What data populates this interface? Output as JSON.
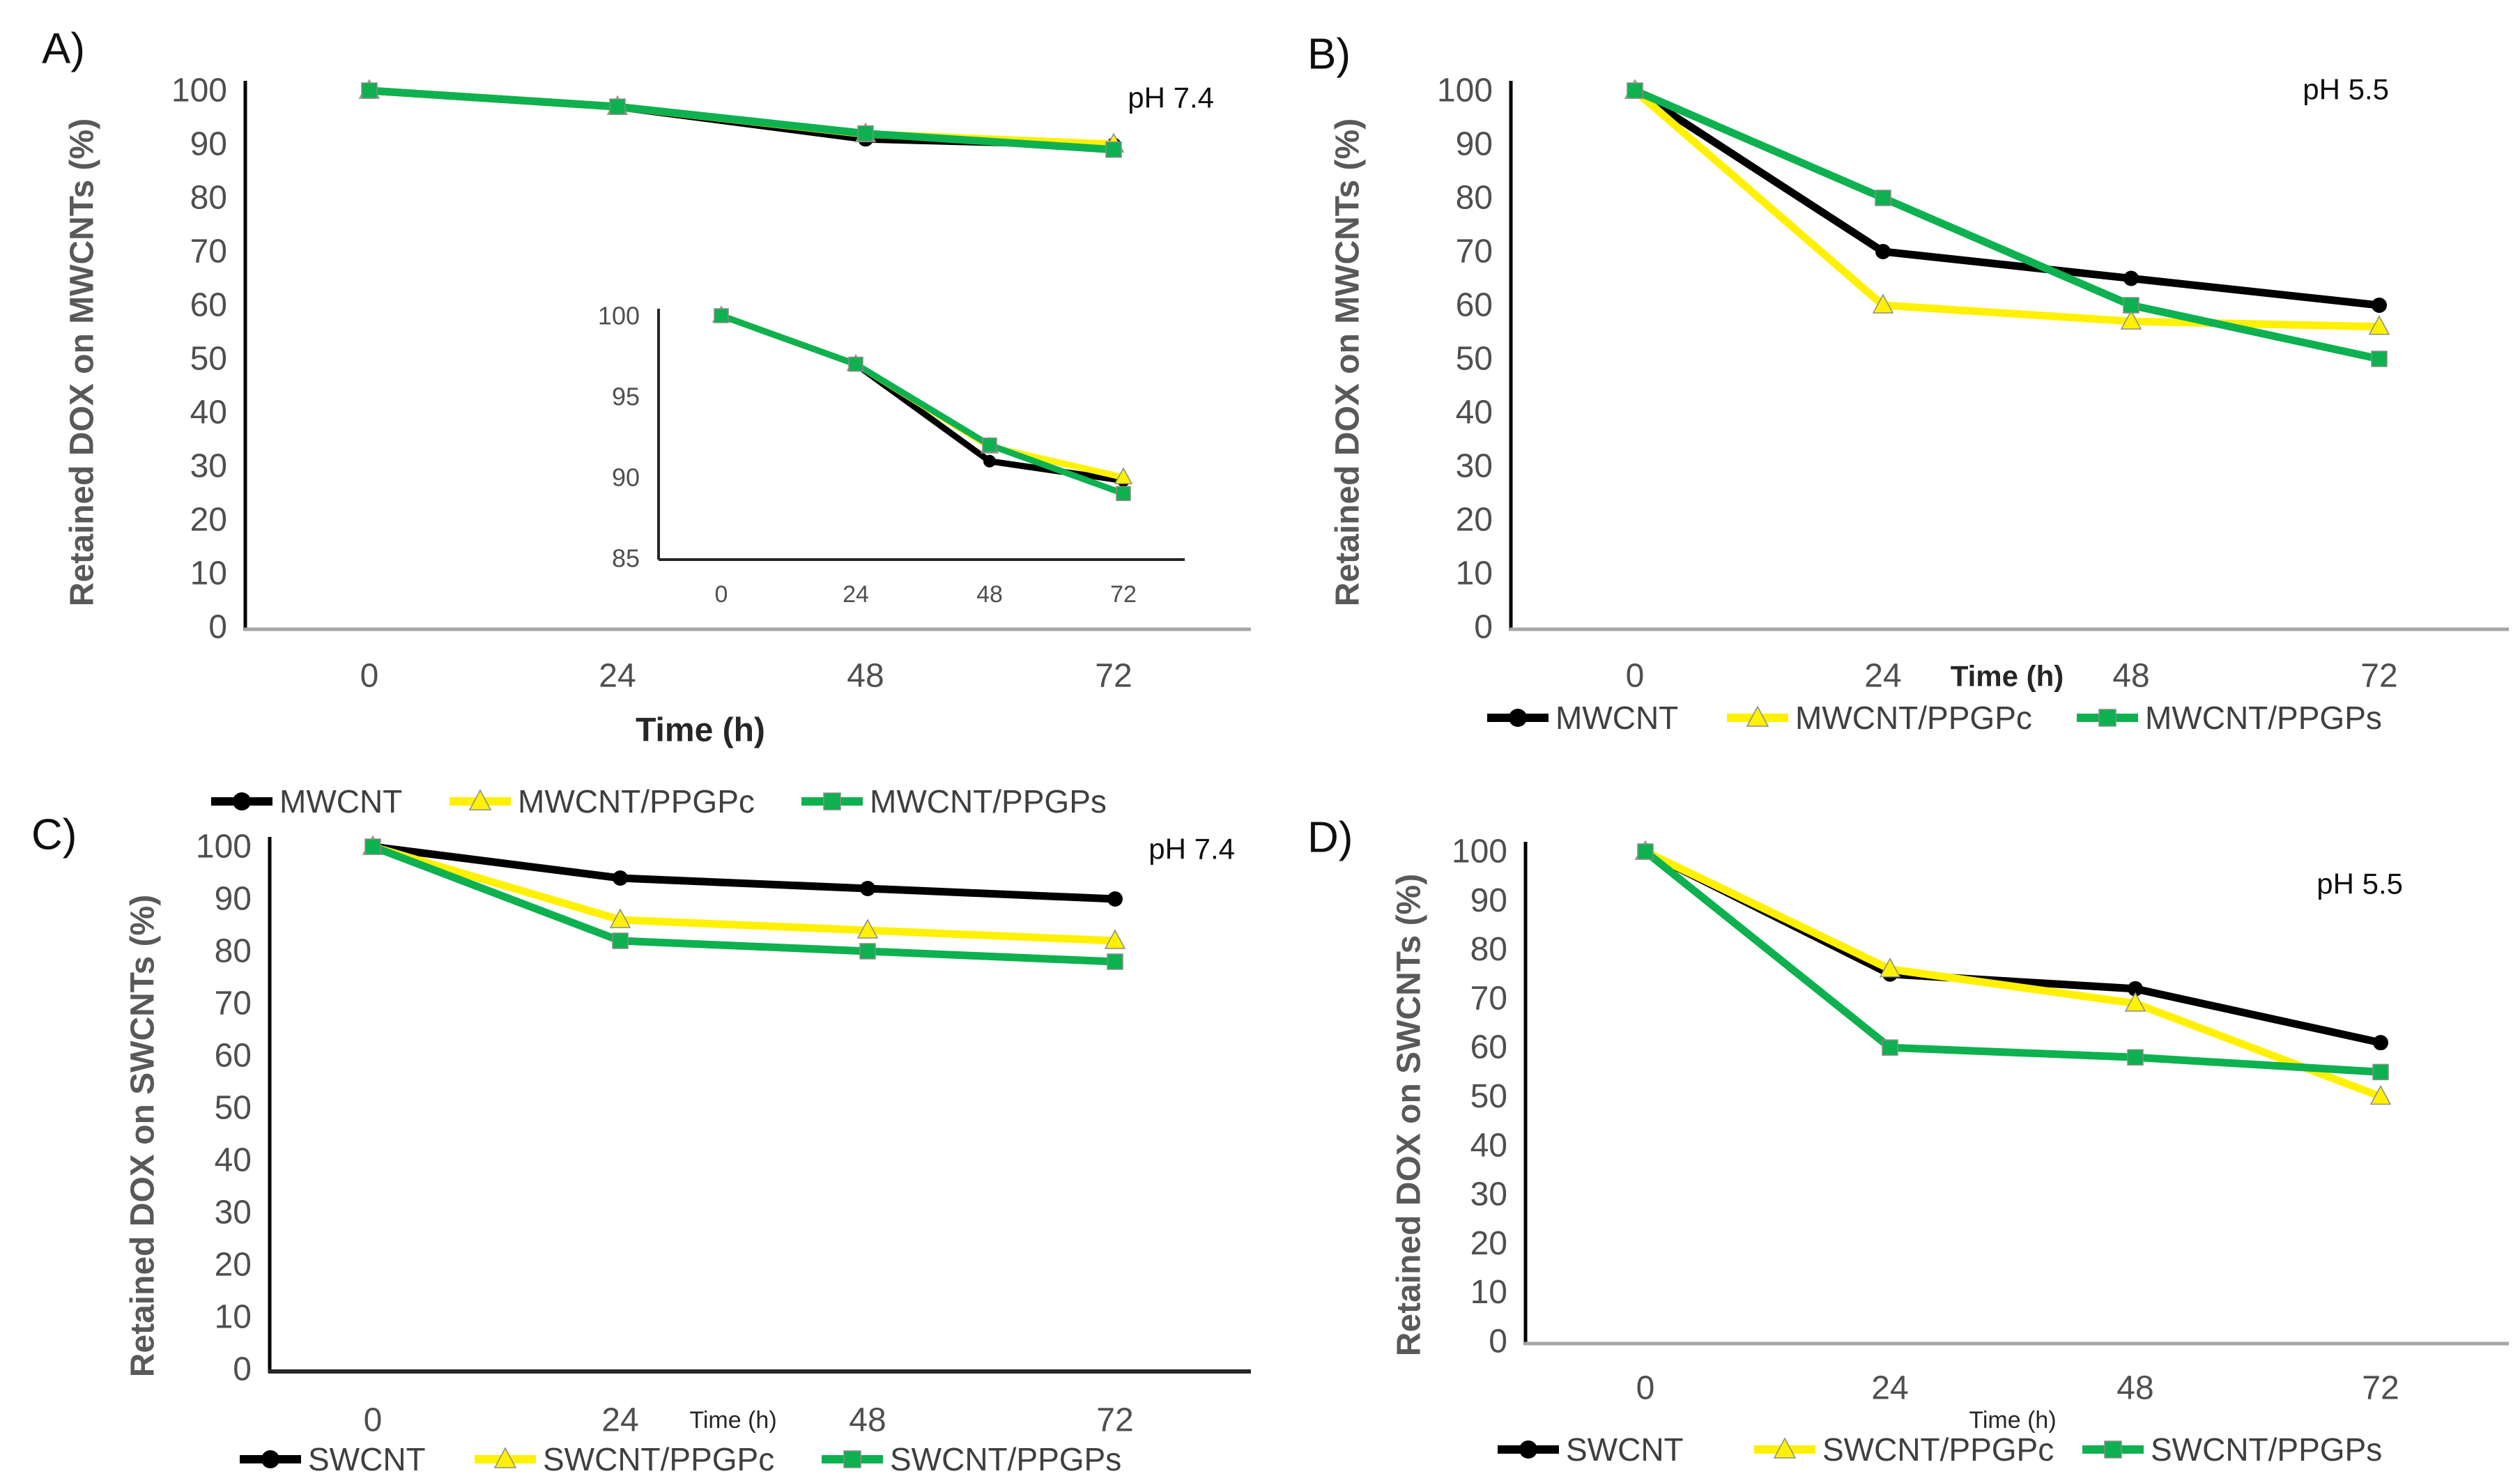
{
  "colors": {
    "black_series": "#000000",
    "yellow_series": "#FFF100",
    "green_series": "#0DB14F",
    "axis_line": "#000000",
    "baseline_gray": "#a6a6a6",
    "baseline_dark": "#262626",
    "tick_text": "#4f4f4f",
    "axis_title_text": "#595959",
    "legend_text": "#3f3f3f",
    "label_text": "#0f0f0f"
  },
  "chart_data": [
    {
      "id": "A",
      "type": "line",
      "panel_label": "A)",
      "annotation": "pH 7.4",
      "xlabel": "Time (h)",
      "ylabel": "Retained DOX on MWCNTs (%)",
      "x_categories": [
        "0",
        "24",
        "48",
        "72"
      ],
      "x_values": [
        0,
        24,
        48,
        72
      ],
      "ylim": [
        0,
        100
      ],
      "yticks": [
        0,
        10,
        20,
        30,
        40,
        50,
        60,
        70,
        80,
        90,
        100
      ],
      "grid": false,
      "legend_position": "bottom",
      "series": [
        {
          "name": "MWCNT",
          "color_key": "black_series",
          "marker": "circle",
          "values": [
            100,
            97,
            91,
            89.8
          ]
        },
        {
          "name": "MWCNT/PPGPc",
          "color_key": "yellow_series",
          "marker": "triangle",
          "values": [
            100,
            97,
            91.9,
            90
          ]
        },
        {
          "name": "MWCNT/PPGPs",
          "color_key": "green_series",
          "marker": "square",
          "values": [
            100,
            97,
            92,
            89
          ]
        }
      ],
      "inset": {
        "type": "line",
        "x_categories": [
          "0",
          "24",
          "48",
          "72"
        ],
        "ylim": [
          85,
          100
        ],
        "yticks": [
          85,
          90,
          95,
          100
        ],
        "series": [
          {
            "name": "MWCNT",
            "color_key": "black_series",
            "marker": "circle",
            "values": [
              100,
              97,
              91,
              89.8
            ]
          },
          {
            "name": "MWCNT/PPGPc",
            "color_key": "yellow_series",
            "marker": "triangle",
            "values": [
              100,
              97,
              91.9,
              90
            ]
          },
          {
            "name": "MWCNT/PPGPs",
            "color_key": "green_series",
            "marker": "square",
            "values": [
              100,
              97,
              92,
              89
            ]
          }
        ]
      }
    },
    {
      "id": "B",
      "type": "line",
      "panel_label": "B)",
      "annotation": "pH 5.5",
      "xlabel": "Time (h)",
      "ylabel": "Retained DOX on MWCNTs (%)",
      "x_categories": [
        "0",
        "24",
        "48",
        "72"
      ],
      "x_values": [
        0,
        24,
        48,
        72
      ],
      "ylim": [
        0,
        100
      ],
      "yticks": [
        0,
        10,
        20,
        30,
        40,
        50,
        60,
        70,
        80,
        90,
        100
      ],
      "grid": false,
      "legend_position": "bottom",
      "series": [
        {
          "name": "MWCNT",
          "color_key": "black_series",
          "marker": "circle",
          "values": [
            100,
            70,
            65,
            60
          ]
        },
        {
          "name": "MWCNT/PPGPc",
          "color_key": "yellow_series",
          "marker": "triangle",
          "values": [
            100,
            60,
            57,
            56
          ]
        },
        {
          "name": "MWCNT/PPGPs",
          "color_key": "green_series",
          "marker": "square",
          "values": [
            100,
            80,
            60,
            50
          ]
        }
      ]
    },
    {
      "id": "C",
      "type": "line",
      "panel_label": "C)",
      "annotation": "pH 7.4",
      "xlabel": "Time (h)",
      "ylabel": "Retained DOX on SWCNTs (%)",
      "x_categories": [
        "0",
        "24",
        "48",
        "72"
      ],
      "x_values": [
        0,
        24,
        48,
        72
      ],
      "ylim": [
        0,
        100
      ],
      "yticks": [
        0,
        10,
        20,
        30,
        40,
        50,
        60,
        70,
        80,
        90,
        100
      ],
      "grid": false,
      "legend_position": "bottom",
      "series": [
        {
          "name": "SWCNT",
          "color_key": "black_series",
          "marker": "circle",
          "values": [
            100,
            94,
            92,
            90
          ]
        },
        {
          "name": "SWCNT/PPGPc",
          "color_key": "yellow_series",
          "marker": "triangle",
          "values": [
            100,
            86,
            84,
            82
          ]
        },
        {
          "name": "SWCNT/PPGPs",
          "color_key": "green_series",
          "marker": "square",
          "values": [
            100,
            82,
            80,
            78
          ]
        }
      ]
    },
    {
      "id": "D",
      "type": "line",
      "panel_label": "D)",
      "annotation": "pH 5.5",
      "xlabel": "Time (h)",
      "ylabel": "Retained DOX on SWCNTs (%)",
      "x_categories": [
        "0",
        "24",
        "48",
        "72"
      ],
      "x_values": [
        0,
        24,
        48,
        72
      ],
      "ylim": [
        0,
        100
      ],
      "yticks": [
        0,
        10,
        20,
        30,
        40,
        50,
        60,
        70,
        80,
        90,
        100
      ],
      "grid": false,
      "legend_position": "bottom",
      "series": [
        {
          "name": "SWCNT",
          "color_key": "black_series",
          "marker": "circle",
          "values": [
            100,
            75,
            72,
            61
          ]
        },
        {
          "name": "SWCNT/PPGPc",
          "color_key": "yellow_series",
          "marker": "triangle",
          "values": [
            100,
            76,
            69,
            50
          ]
        },
        {
          "name": "SWCNT/PPGPs",
          "color_key": "green_series",
          "marker": "square",
          "values": [
            100,
            60,
            58,
            55
          ]
        }
      ]
    }
  ]
}
